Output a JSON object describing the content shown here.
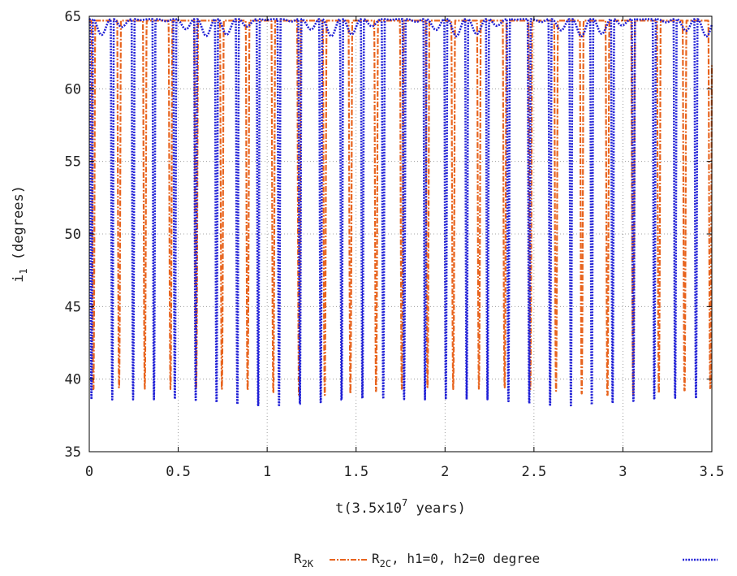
{
  "chart_data": {
    "type": "line",
    "title": "",
    "xlabel": {
      "prefix": "t(3.5x10",
      "sup": "7",
      "suffix": " years)"
    },
    "ylabel": {
      "main": "i",
      "sub": "1",
      "suffix": " (degrees)"
    },
    "xlim": [
      0,
      3.5
    ],
    "ylim": [
      35,
      65
    ],
    "xticks": [
      "0",
      "0.5",
      "1",
      "1.5",
      "2",
      "2.5",
      "3",
      "3.5"
    ],
    "yticks": [
      "35",
      "40",
      "45",
      "50",
      "55",
      "60",
      "65"
    ],
    "grid": true,
    "legend_position": "bottom-right",
    "legend": {
      "series1": {
        "main": "R",
        "sub": "2K"
      },
      "series2": {
        "main": "R",
        "sub": "2C",
        "suffix": ",  h1=0, h2=0 degree"
      }
    },
    "series": [
      {
        "color": "#e8641e",
        "style": "dash-dot",
        "max": 64.7,
        "min": 39.3,
        "period": 0.1445,
        "phase": 0.023,
        "description": "periodic sharp dips from ~64.7 to ~39.3"
      },
      {
        "color": "#1f1fd6",
        "style": "dotted",
        "max": 64.8,
        "min": 38.6,
        "period": 0.1172,
        "phase": 0.012,
        "description": "periodic sharp dips from ~64.8 to ~38.6 with small intermediate oscillations"
      }
    ]
  }
}
